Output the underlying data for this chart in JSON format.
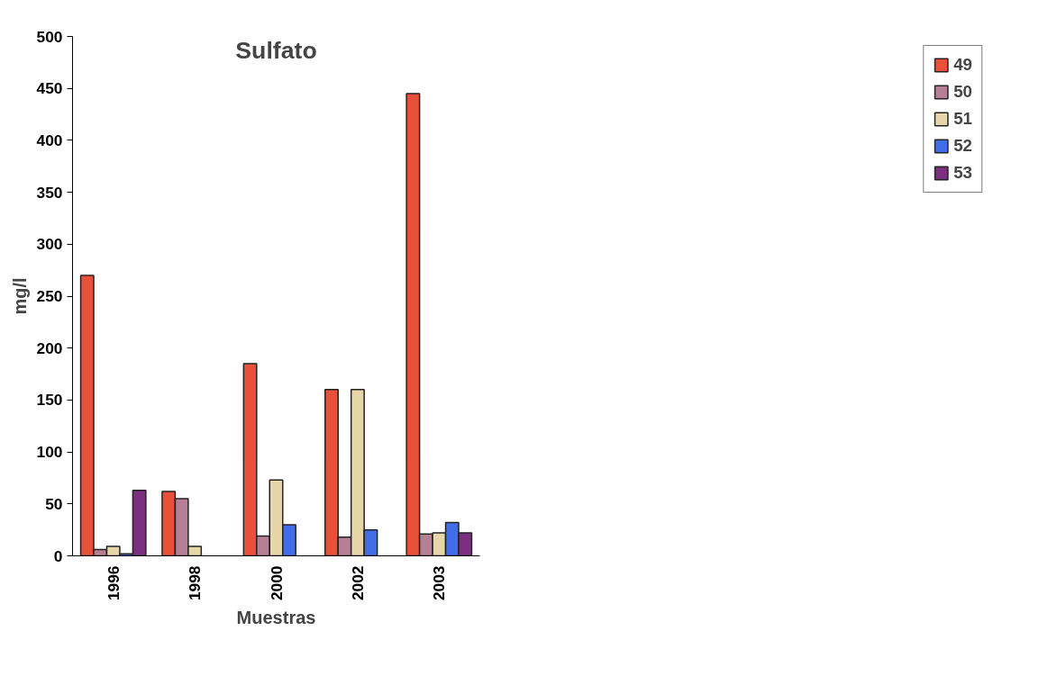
{
  "chart_data": {
    "type": "bar",
    "title": "Sulfato",
    "xlabel": "Muestras",
    "ylabel": "mg/l",
    "categories": [
      "1996",
      "1998",
      "2000",
      "2002",
      "2003"
    ],
    "series": [
      {
        "name": "49",
        "color": "#e8503a",
        "values": [
          270,
          62,
          185,
          160,
          445
        ]
      },
      {
        "name": "50",
        "color": "#b77f96",
        "values": [
          6,
          55,
          19,
          18,
          21
        ]
      },
      {
        "name": "51",
        "color": "#e6d6aa",
        "values": [
          9,
          9,
          73,
          160,
          22
        ]
      },
      {
        "name": "52",
        "color": "#3f6ee8",
        "values": [
          2,
          null,
          30,
          25,
          32
        ]
      },
      {
        "name": "53",
        "color": "#7b2f7e",
        "values": [
          63,
          null,
          null,
          null,
          22
        ]
      }
    ],
    "ylim": [
      0,
      500
    ],
    "yticks": [
      0,
      50,
      100,
      150,
      200,
      250,
      300,
      350,
      400,
      450,
      500
    ],
    "grid": false,
    "legend": "right"
  }
}
